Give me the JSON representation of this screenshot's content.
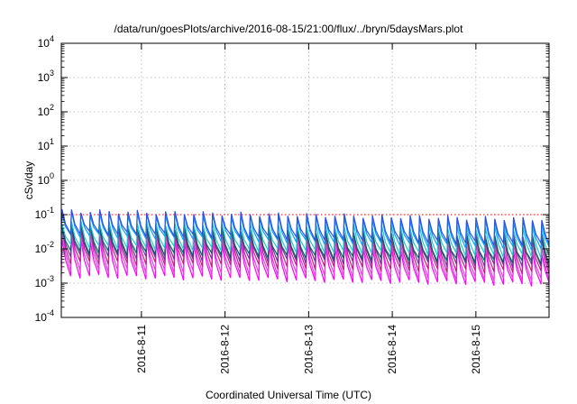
{
  "chart_data": {
    "type": "line",
    "title": "/data/run/goesPlots/archive/2016-08-15/21:00/flux/../bryn/5daysMars.plot",
    "xlabel": "Coordinated Universal Time (UTC)",
    "ylabel": "cSv/day",
    "x_range": [
      "2016-08-10 01:00",
      "2016-08-15 21:00"
    ],
    "x_ticks": [
      "2016-8-11",
      "2016-8-12",
      "2016-8-13",
      "2016-8-14",
      "2016-8-15"
    ],
    "y_scale": "log",
    "ylim": [
      0.0001,
      10000
    ],
    "y_ticks": [
      {
        "base": "10",
        "exp": "-4"
      },
      {
        "base": "10",
        "exp": "-3"
      },
      {
        "base": "10",
        "exp": "-2"
      },
      {
        "base": "10",
        "exp": "-1"
      },
      {
        "base": "10",
        "exp": "0"
      },
      {
        "base": "10",
        "exp": "1"
      },
      {
        "base": "10",
        "exp": "2"
      },
      {
        "base": "10",
        "exp": "3"
      },
      {
        "base": "10",
        "exp": "4"
      }
    ],
    "grid": true,
    "legend": "none",
    "reference_line": {
      "y": 0.1,
      "color": "#ff0000",
      "style": "dotted"
    },
    "cycle_hours": 2.7,
    "series": [
      {
        "color": "#3050e0",
        "peak_start": 0.13,
        "peak_end": 0.075,
        "trough_start": 0.03,
        "trough_end": 0.013
      },
      {
        "color": "#00a0ff",
        "peak_start": 0.11,
        "peak_end": 0.06,
        "trough_start": 0.025,
        "trough_end": 0.01
      },
      {
        "color": "#20c8c8",
        "peak_start": 0.06,
        "peak_end": 0.04,
        "trough_start": 0.012,
        "trough_end": 0.006
      },
      {
        "color": "#006060",
        "peak_start": 0.05,
        "peak_end": 0.02,
        "trough_start": 0.008,
        "trough_end": 0.004
      },
      {
        "color": "#7030a0",
        "peak_start": 0.045,
        "peak_end": 0.025,
        "trough_start": 0.006,
        "trough_end": 0.003
      },
      {
        "color": "#c02080",
        "peak_start": 0.04,
        "peak_end": 0.018,
        "trough_start": 0.004,
        "trough_end": 0.002
      },
      {
        "color": "#e040e0",
        "peak_start": 0.03,
        "peak_end": 0.012,
        "trough_start": 0.0025,
        "trough_end": 0.0012
      },
      {
        "color": "#ff00ff",
        "peak_start": 0.02,
        "peak_end": 0.008,
        "trough_start": 0.0016,
        "trough_end": 0.0009
      }
    ]
  }
}
